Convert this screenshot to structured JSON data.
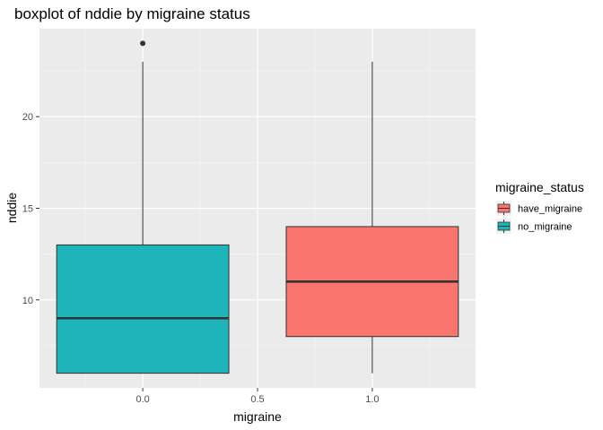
{
  "chart_data": {
    "type": "boxplot",
    "title": "boxplot of nddie by migraine status",
    "xlabel": "migraine",
    "ylabel": "nddie",
    "xlim": [
      -0.45,
      1.45
    ],
    "ylim": [
      5.2,
      24.8
    ],
    "x_ticks": [
      0.0,
      0.5,
      1.0
    ],
    "x_tick_labels": [
      "0.0",
      "0.5",
      "1.0"
    ],
    "y_ticks": [
      10,
      15,
      20
    ],
    "y_tick_labels": [
      "10",
      "15",
      "20"
    ],
    "grid": true,
    "legend": {
      "title": "migraine_status",
      "position": "right",
      "entries": [
        {
          "label": "have_migraine",
          "color": "#F8766D"
        },
        {
          "label": "no_migraine",
          "color": "#1DB5BA"
        }
      ]
    },
    "boxes": [
      {
        "group": "no_migraine",
        "x": 0.0,
        "width": 0.75,
        "min": 6,
        "q1": 6,
        "median": 9,
        "q3": 13,
        "max": 23,
        "outliers": [
          24
        ],
        "color": "#1DB5BA"
      },
      {
        "group": "have_migraine",
        "x": 1.0,
        "width": 0.75,
        "min": 6,
        "q1": 8,
        "median": 11,
        "q3": 14,
        "max": 23,
        "outliers": [],
        "color": "#F8766D"
      }
    ]
  },
  "colors": {
    "panel": "#EBEBEB",
    "grid_major": "#FFFFFF",
    "grid_minor": "#F5F5F5",
    "box_line": "#333333"
  }
}
